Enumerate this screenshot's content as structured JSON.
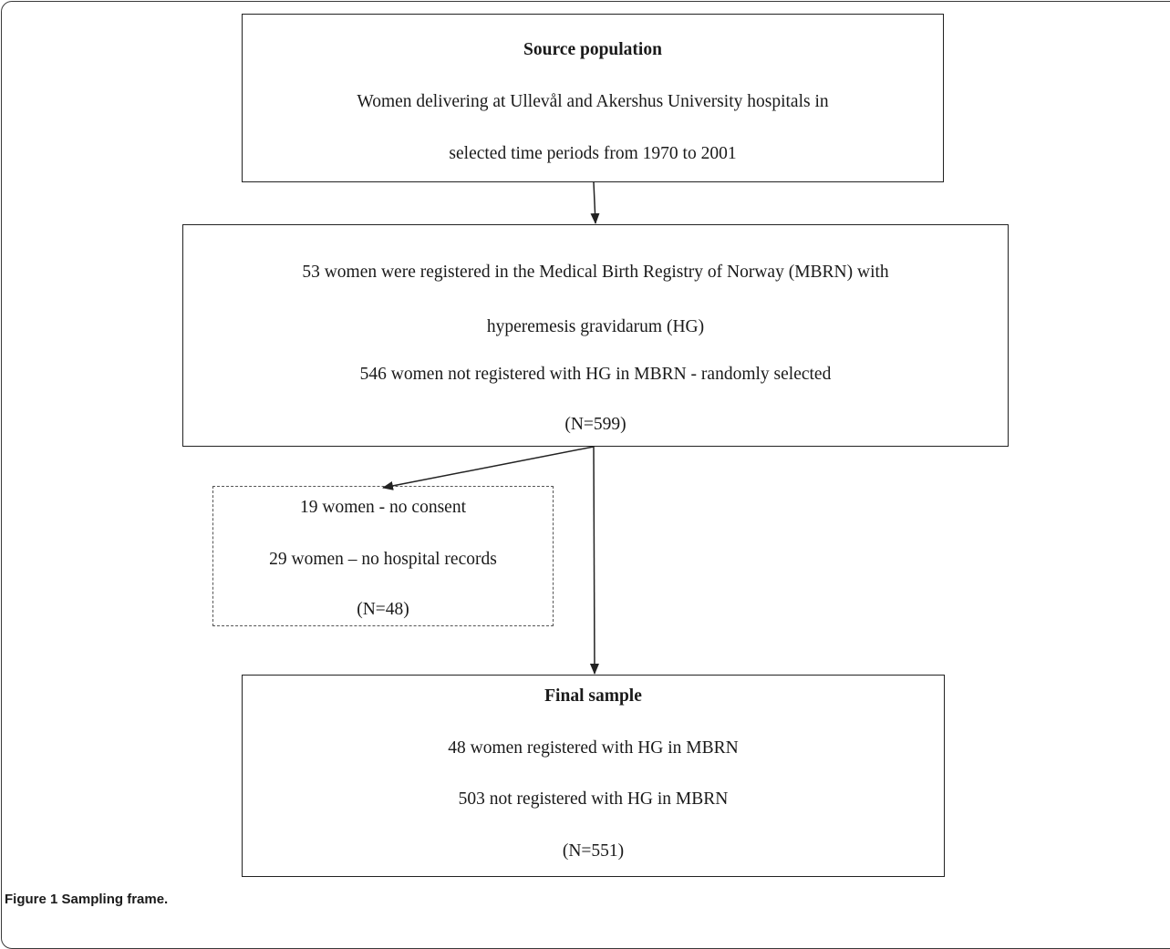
{
  "boxes": {
    "source": {
      "title": "Source population",
      "line1": "Women delivering at Ullevål and Akershus University hospitals in",
      "line2": "selected time periods from 1970 to 2001"
    },
    "registry": {
      "line1": "53 women were registered in the Medical Birth Registry of Norway (MBRN) with",
      "line2": "hyperemesis gravidarum (HG)",
      "line3": "546 women not registered with HG in MBRN - randomly selected",
      "line4": "(N=599)"
    },
    "excluded": {
      "line1": "19 women - no consent",
      "line2": "29 women – no hospital records",
      "line3": "(N=48)"
    },
    "final": {
      "title": "Final sample",
      "line1": "48 women registered with HG in MBRN",
      "line2": "503 not registered with HG in MBRN",
      "line3": "(N=551)"
    }
  },
  "caption": {
    "label": "Figure 1",
    "text": "Sampling frame."
  }
}
